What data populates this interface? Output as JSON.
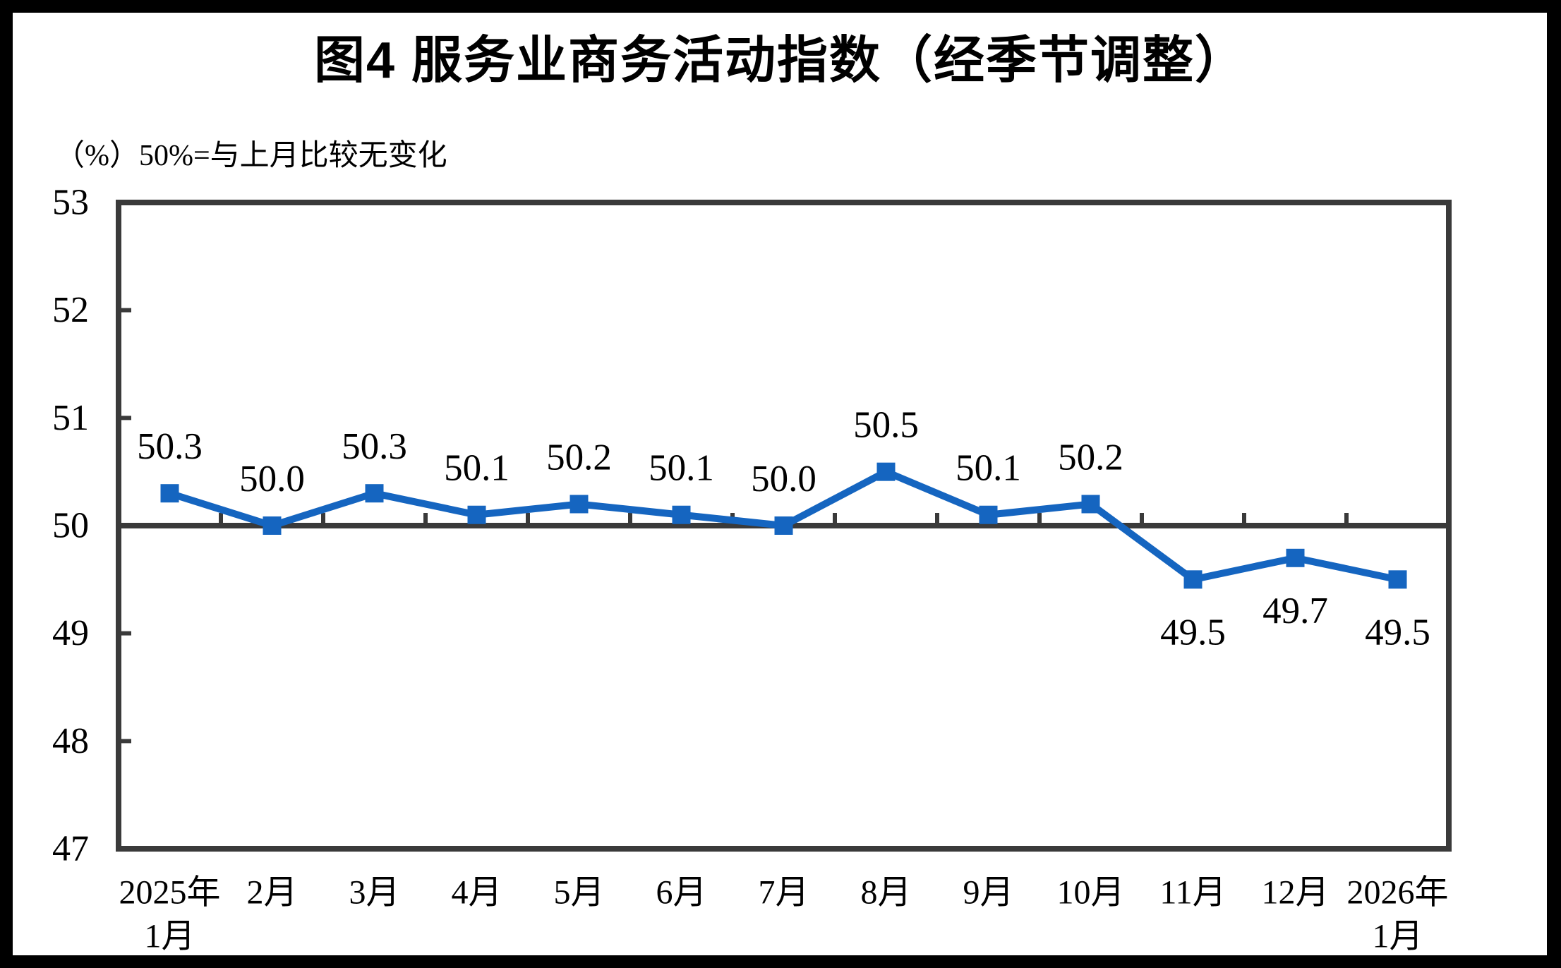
{
  "figure": {
    "title": "图4 服务业商务活动指数（经季节调整）",
    "unit_note": "（%）50%=与上月比较无变化"
  },
  "chart_data": {
    "type": "line",
    "title": "图4 服务业商务活动指数（经季节调整）",
    "unit_note": "（%）50%=与上月比较无变化",
    "categories": [
      "2025年\n1月",
      "2月",
      "3月",
      "4月",
      "5月",
      "6月",
      "7月",
      "8月",
      "9月",
      "10月",
      "11月",
      "12月",
      "2026年\n1月"
    ],
    "series": [
      {
        "name": "服务业商务活动指数",
        "values": [
          50.3,
          50.0,
          50.3,
          50.1,
          50.2,
          50.1,
          50.0,
          50.5,
          50.1,
          50.2,
          49.5,
          49.7,
          49.5
        ],
        "data_labels": [
          "50.3",
          "50.0",
          "50.3",
          "50.1",
          "50.2",
          "50.1",
          "50.0",
          "50.5",
          "50.1",
          "50.2",
          "49.5",
          "49.7",
          "49.5"
        ]
      }
    ],
    "ylim": [
      47,
      53
    ],
    "yticks": [
      53,
      52,
      51,
      50,
      49,
      48,
      47
    ],
    "baseline_value": 50,
    "grid": false,
    "legend_position": "none",
    "marker_shape": "square",
    "colors": {
      "line": "#1565C0",
      "marker": "#1565C0",
      "axis": "#3a3a3a",
      "text": "#000000",
      "plot_background": "#ffffff",
      "outer_frame": "#000000"
    }
  }
}
